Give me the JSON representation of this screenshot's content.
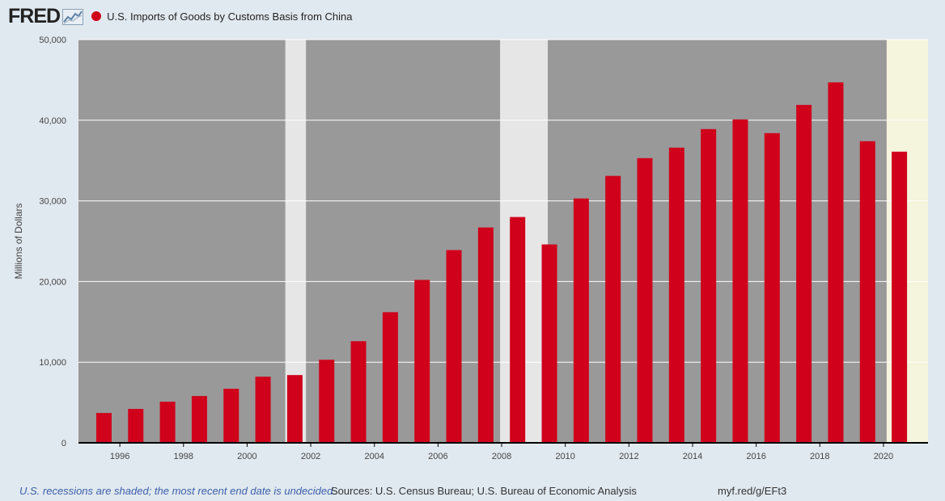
{
  "header": {
    "logo_text": "FRED",
    "logo_icon": "line-chart-icon"
  },
  "colors": {
    "page_background": "#e1e9f0",
    "plot_background": "#999999",
    "recession_shade": "#e6e6e6",
    "undecided_shade": "#f5f4dc",
    "bar": "#d0021b",
    "gridline": "#ffffff",
    "axis": "#000000"
  },
  "chart_data": {
    "type": "bar",
    "title": "",
    "xlabel": "",
    "ylabel": "Millions of Dollars",
    "ylim": [
      0,
      50000
    ],
    "yticks": [
      0,
      10000,
      20000,
      30000,
      40000,
      50000
    ],
    "ytick_labels": [
      "0",
      "10,000",
      "20,000",
      "30,000",
      "40,000",
      "50,000"
    ],
    "xlim": [
      1994.7,
      2021.4
    ],
    "xticks": [
      1996,
      1998,
      2000,
      2002,
      2004,
      2006,
      2008,
      2010,
      2012,
      2014,
      2016,
      2018,
      2020
    ],
    "grid": true,
    "legend_position": "top-left",
    "series": [
      {
        "name": "U.S. Imports of Goods by Customs Basis from China",
        "color": "#d0021b",
        "x": [
          1995,
          1996,
          1997,
          1998,
          1999,
          2000,
          2001,
          2002,
          2003,
          2004,
          2005,
          2006,
          2007,
          2008,
          2009,
          2010,
          2011,
          2012,
          2013,
          2014,
          2015,
          2016,
          2017,
          2018,
          2019,
          2020
        ],
        "values": [
          3700,
          4200,
          5100,
          5800,
          6700,
          8200,
          8400,
          10300,
          12600,
          16200,
          20200,
          23900,
          26700,
          28000,
          24600,
          30300,
          33100,
          35300,
          36600,
          38900,
          40100,
          38400,
          41900,
          44700,
          37400,
          36100
        ]
      }
    ],
    "shaded_periods": [
      {
        "kind": "recession",
        "start": 2001.2,
        "end": 2001.85
      },
      {
        "kind": "recession",
        "start": 2007.95,
        "end": 2009.45
      },
      {
        "kind": "undecided",
        "start": 2020.1,
        "end": 2021.4
      }
    ]
  },
  "footer": {
    "recession_note": "U.S. recessions are shaded; the most recent end date is undecided.",
    "sources": "Sources: U.S. Census Bureau; U.S. Bureau of Economic Analysis",
    "shortlink": "myf.red/g/EFt3"
  }
}
